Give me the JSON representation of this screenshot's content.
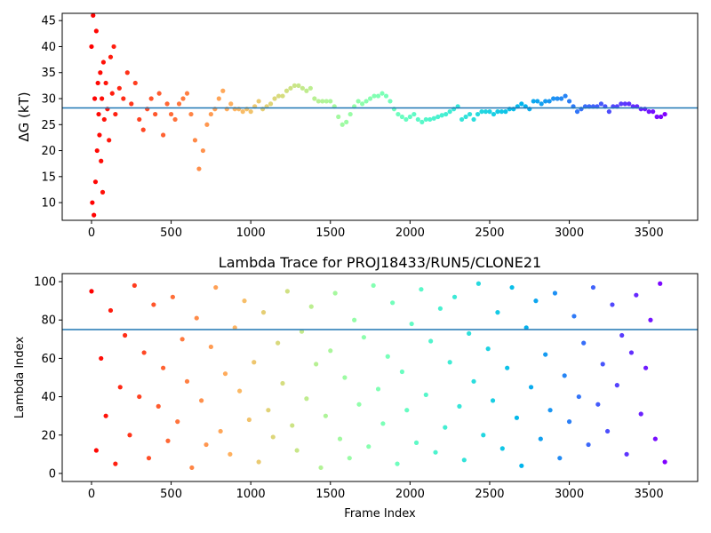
{
  "chart_data": [
    {
      "type": "scatter",
      "ylabel": "ΔG (kT)",
      "colormap": "rainbow_r",
      "reference_line": 28.2,
      "reference_line_color": "#1f77b4",
      "xlim": [
        -184,
        3806
      ],
      "ylim": [
        6.6,
        46.4
      ],
      "xticks": [
        0,
        500,
        1000,
        1500,
        2000,
        2500,
        3000,
        3500
      ],
      "yticks": [
        10,
        15,
        20,
        25,
        30,
        35,
        40,
        45
      ],
      "x": [
        0,
        5,
        10,
        15,
        20,
        25,
        30,
        35,
        40,
        45,
        50,
        55,
        60,
        65,
        70,
        75,
        80,
        90,
        100,
        110,
        120,
        130,
        140,
        150,
        175,
        200,
        225,
        250,
        275,
        300,
        325,
        350,
        375,
        400,
        425,
        450,
        475,
        500,
        525,
        550,
        575,
        600,
        625,
        650,
        675,
        700,
        725,
        750,
        775,
        800,
        825,
        850,
        875,
        900,
        925,
        950,
        975,
        1000,
        1025,
        1050,
        1075,
        1100,
        1125,
        1150,
        1175,
        1200,
        1225,
        1250,
        1275,
        1300,
        1325,
        1350,
        1375,
        1400,
        1425,
        1450,
        1475,
        1500,
        1525,
        1550,
        1575,
        1600,
        1625,
        1650,
        1675,
        1700,
        1725,
        1750,
        1775,
        1800,
        1825,
        1850,
        1875,
        1900,
        1925,
        1950,
        1975,
        2000,
        2025,
        2050,
        2075,
        2100,
        2125,
        2150,
        2175,
        2200,
        2225,
        2250,
        2275,
        2300,
        2325,
        2350,
        2375,
        2400,
        2425,
        2450,
        2475,
        2500,
        2525,
        2550,
        2575,
        2600,
        2625,
        2650,
        2675,
        2700,
        2725,
        2750,
        2775,
        2800,
        2825,
        2850,
        2875,
        2900,
        2925,
        2950,
        2975,
        3000,
        3025,
        3050,
        3075,
        3100,
        3125,
        3150,
        3175,
        3200,
        3225,
        3250,
        3275,
        3300,
        3325,
        3350,
        3375,
        3400,
        3425,
        3450,
        3475,
        3500,
        3525,
        3550,
        3575,
        3600
      ],
      "values": [
        40,
        10,
        46,
        7.6,
        30,
        14,
        43,
        20,
        33,
        27,
        23,
        35,
        18,
        30,
        12,
        37,
        26,
        33,
        28,
        22,
        38,
        31,
        40,
        27,
        32,
        30,
        35,
        29,
        33,
        26,
        24,
        28,
        30,
        27,
        31,
        23,
        29,
        27,
        26,
        29,
        30,
        31,
        27,
        22,
        16.5,
        20,
        25,
        27,
        28,
        30,
        31.5,
        28,
        29,
        28,
        28,
        27.5,
        28,
        27.5,
        28.5,
        29.5,
        28,
        28.5,
        29,
        30,
        30.5,
        30.5,
        31.5,
        32,
        32.5,
        32.5,
        32,
        31.5,
        32,
        30,
        29.5,
        29.5,
        29.5,
        29.5,
        28.5,
        26.5,
        25,
        25.5,
        27,
        28.5,
        29.5,
        29,
        29.5,
        30,
        30.5,
        30.5,
        31,
        30.5,
        29.5,
        28,
        27,
        26.5,
        26,
        26.5,
        27,
        26,
        25.5,
        26,
        26,
        26.2,
        26.5,
        26.8,
        27,
        27.5,
        28,
        28.5,
        26,
        26.5,
        27,
        26,
        27,
        27.5,
        27.5,
        27.5,
        27,
        27.5,
        27.5,
        27.5,
        28,
        28,
        28.5,
        29,
        28.5,
        28,
        29.5,
        29.5,
        29,
        29.5,
        29.5,
        30,
        30,
        30,
        30.5,
        29.5,
        28.5,
        27.5,
        28,
        28.5,
        28.5,
        28.5,
        28.5,
        29,
        28.5,
        27.5,
        28.5,
        28.5,
        29,
        29,
        29,
        28.5,
        28.5,
        28,
        28,
        27.5,
        27.5,
        26.5,
        26.5,
        27
      ]
    },
    {
      "type": "scatter",
      "title": "Lambda Trace for PROJ18433/RUN5/CLONE21",
      "xlabel": "Frame Index",
      "ylabel": "Lambda Index",
      "colormap": "rainbow_r",
      "reference_line": 75,
      "reference_line_color": "#1f77b4",
      "xlim": [
        -184,
        3806
      ],
      "ylim": [
        -4.2,
        104.2
      ],
      "xticks": [
        0,
        500,
        1000,
        1500,
        2000,
        2500,
        3000,
        3500
      ],
      "yticks": [
        0,
        20,
        40,
        60,
        80,
        100
      ],
      "x": [
        0,
        30,
        60,
        90,
        120,
        150,
        180,
        210,
        240,
        270,
        300,
        330,
        360,
        390,
        420,
        450,
        480,
        510,
        540,
        570,
        600,
        630,
        660,
        690,
        720,
        750,
        780,
        810,
        840,
        870,
        900,
        930,
        960,
        990,
        1020,
        1050,
        1080,
        1110,
        1140,
        1170,
        1200,
        1230,
        1260,
        1290,
        1320,
        1350,
        1380,
        1410,
        1440,
        1470,
        1500,
        1530,
        1560,
        1590,
        1620,
        1650,
        1680,
        1710,
        1740,
        1770,
        1800,
        1830,
        1860,
        1890,
        1920,
        1950,
        1980,
        2010,
        2040,
        2070,
        2100,
        2130,
        2160,
        2190,
        2220,
        2250,
        2280,
        2310,
        2340,
        2370,
        2400,
        2430,
        2460,
        2490,
        2520,
        2550,
        2580,
        2610,
        2640,
        2670,
        2700,
        2730,
        2760,
        2790,
        2820,
        2850,
        2880,
        2910,
        2940,
        2970,
        3000,
        3030,
        3060,
        3090,
        3120,
        3150,
        3180,
        3210,
        3240,
        3270,
        3300,
        3330,
        3360,
        3390,
        3420,
        3450,
        3480,
        3510,
        3540,
        3570,
        3600
      ],
      "values": [
        95,
        12,
        60,
        30,
        85,
        5,
        45,
        72,
        20,
        98,
        40,
        63,
        8,
        88,
        35,
        55,
        17,
        92,
        27,
        70,
        48,
        3,
        81,
        38,
        15,
        66,
        97,
        22,
        52,
        10,
        76,
        43,
        90,
        28,
        58,
        6,
        84,
        33,
        19,
        68,
        47,
        95,
        25,
        12,
        74,
        39,
        87,
        57,
        3,
        30,
        64,
        94,
        18,
        50,
        8,
        80,
        36,
        71,
        14,
        98,
        44,
        26,
        61,
        89,
        5,
        53,
        33,
        78,
        16,
        96,
        41,
        69,
        11,
        86,
        24,
        58,
        92,
        35,
        7,
        73,
        48,
        99,
        20,
        65,
        38,
        84,
        13,
        55,
        97,
        29,
        4,
        76,
        45,
        90,
        18,
        62,
        33,
        94,
        8,
        51,
        27,
        82,
        40,
        68,
        15,
        97,
        36,
        57,
        22,
        88,
        46,
        72,
        10,
        63,
        93,
        31,
        55,
        80,
        18,
        99,
        6
      ]
    }
  ]
}
